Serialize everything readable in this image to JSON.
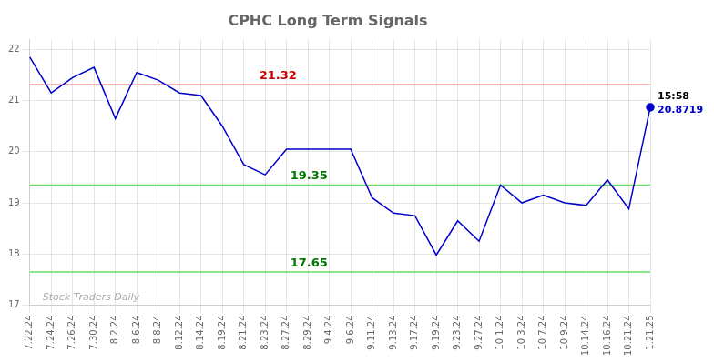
{
  "chart_data": {
    "type": "line",
    "title": "CPHC Long Term Signals",
    "categories": [
      "7.22.24",
      "7.24.24",
      "7.26.24",
      "7.30.24",
      "8.2.24",
      "8.6.24",
      "8.8.24",
      "8.12.24",
      "8.14.24",
      "8.19.24",
      "8.21.24",
      "8.23.24",
      "8.27.24",
      "8.29.24",
      "9.4.24",
      "9.6.24",
      "9.11.24",
      "9.13.24",
      "9.17.24",
      "9.19.24",
      "9.23.24",
      "9.27.24",
      "10.1.24",
      "10.3.24",
      "10.7.24",
      "10.9.24",
      "10.14.24",
      "10.16.24",
      "10.21.24",
      "1.21.25"
    ],
    "values": [
      21.85,
      21.15,
      21.45,
      21.65,
      20.65,
      21.55,
      21.4,
      21.15,
      21.1,
      20.5,
      19.75,
      19.55,
      20.05,
      20.05,
      20.05,
      20.05,
      19.1,
      18.8,
      18.75,
      17.98,
      18.65,
      18.25,
      19.35,
      19.0,
      19.15,
      19.0,
      18.95,
      19.45,
      18.88,
      20.87
    ],
    "color": "#0000cc",
    "ylim": [
      17,
      22.2
    ],
    "yticks": [
      17,
      18,
      19,
      20,
      21,
      22
    ],
    "grid": true,
    "lines": [
      {
        "y": 21.32,
        "label": "21.32",
        "color": "#ffb3b3",
        "label_color": "#cc0000"
      },
      {
        "y": 19.35,
        "label": "19.35",
        "color": "#66dd66",
        "label_color": "#007700"
      },
      {
        "y": 17.65,
        "label": "17.65",
        "color": "#66dd66",
        "label_color": "#007700"
      }
    ],
    "annotations": [
      {
        "text": "15:58",
        "color": "#000000"
      },
      {
        "text": "20.8719",
        "color": "#0000cc"
      }
    ],
    "watermark": {
      "text": "Stock Traders Daily",
      "color": "#aaaaaa"
    }
  }
}
